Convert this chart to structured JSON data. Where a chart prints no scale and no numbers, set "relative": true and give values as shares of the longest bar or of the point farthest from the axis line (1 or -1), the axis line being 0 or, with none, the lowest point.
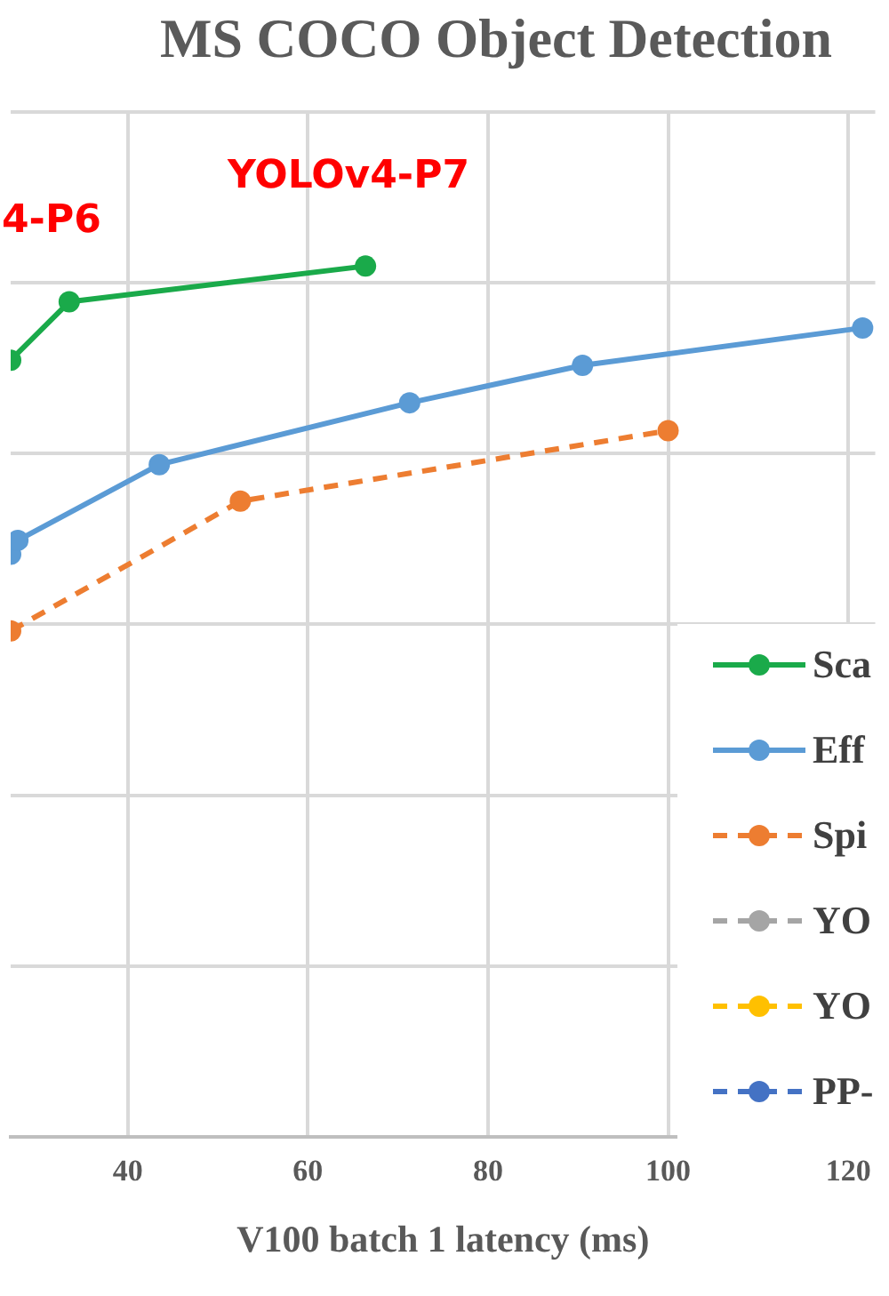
{
  "chart_data": {
    "type": "line",
    "title": "MS COCO Object Detection",
    "xlabel": "V100 batch 1 latency (ms)",
    "relative": true,
    "xlim": [
      27,
      123
    ],
    "xticks": [
      40,
      60,
      80,
      100,
      120
    ],
    "grid": true,
    "legend": "bottom right",
    "marker": "circle",
    "annotations": [
      "4-P6",
      "YOLOv4-P7"
    ],
    "series": [
      {
        "name": "Sca",
        "color": "#1aaa4a",
        "line_style": "solid",
        "x": [
          27,
          33.5,
          66.4
        ],
        "values": [
          0.892,
          0.959,
          1
        ]
      },
      {
        "name": "Eff",
        "color": "#5b9bd5",
        "line_style": "solid",
        "x": [
          27,
          27.8,
          43.5,
          71.3,
          90.5,
          121.6
        ],
        "values": [
          0.669,
          0.685,
          0.772,
          0.843,
          0.886,
          0.929
        ]
      },
      {
        "name": "Spi",
        "color": "#ed7d31",
        "line_style": "dashed",
        "x": [
          27,
          52.5,
          100
        ],
        "values": [
          0.581,
          0.73,
          0.811
        ]
      },
      {
        "name": "YO",
        "color": "#a5a5a5",
        "line_style": "dashed"
      },
      {
        "name": "YO",
        "color": "#ffc000",
        "line_style": "dashed"
      },
      {
        "name": "PP-",
        "color": "#4472c4",
        "line_style": "dashed"
      }
    ]
  }
}
